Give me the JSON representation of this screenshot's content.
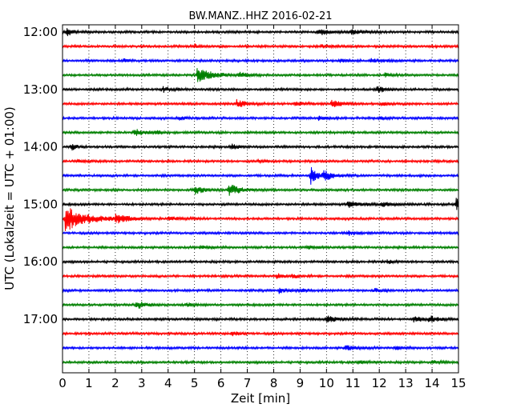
{
  "chart_data": {
    "type": "line",
    "subtype": "dayplot-seismogram",
    "title": "BW.MANZ..HHZ 2016-02-21",
    "xlabel": "Zeit  [min]",
    "ylabel": "UTC (Lokalzeit = UTC + 01:00)",
    "xlim": [
      0,
      15
    ],
    "x_ticks": [
      "0",
      "1",
      "2",
      "3",
      "4",
      "5",
      "6",
      "7",
      "8",
      "9",
      "10",
      "11",
      "12",
      "13",
      "14",
      "15"
    ],
    "y_tick_labels": [
      "12:00",
      "13:00",
      "14:00",
      "15:00",
      "16:00",
      "17:00"
    ],
    "grid": "vertical-dotted",
    "color_cycle": [
      "#000000",
      "#ff0000",
      "#0000ff",
      "#008000"
    ],
    "traces": [
      {
        "start": "12:00",
        "events": [
          {
            "t": 0.15,
            "amp": 5,
            "dur": 0.4
          },
          {
            "t": 9.7,
            "amp": 4,
            "dur": 0.6
          },
          {
            "t": 10.9,
            "amp": 3,
            "dur": 0.8
          }
        ]
      },
      {
        "start": "12:15",
        "events": [
          {
            "t": 5.0,
            "amp": 3,
            "dur": 0.3
          },
          {
            "t": 9.8,
            "amp": 2,
            "dur": 0.5
          }
        ]
      },
      {
        "start": "12:30",
        "events": [
          {
            "t": 2.3,
            "amp": 2,
            "dur": 0.4
          },
          {
            "t": 10.5,
            "amp": 2,
            "dur": 0.6
          },
          {
            "t": 11.7,
            "amp": 2,
            "dur": 0.8
          }
        ]
      },
      {
        "start": "12:45",
        "events": [
          {
            "t": 5.1,
            "amp": 9,
            "dur": 0.9
          },
          {
            "t": 6.7,
            "amp": 3,
            "dur": 0.5
          },
          {
            "t": 12.2,
            "amp": 2,
            "dur": 0.5
          }
        ]
      },
      {
        "start": "13:00",
        "events": [
          {
            "t": 3.8,
            "amp": 3,
            "dur": 0.6
          },
          {
            "t": 11.9,
            "amp": 4,
            "dur": 0.6
          }
        ]
      },
      {
        "start": "13:15",
        "events": [
          {
            "t": 6.6,
            "amp": 5,
            "dur": 0.5
          },
          {
            "t": 8.8,
            "amp": 3,
            "dur": 0.5
          },
          {
            "t": 10.2,
            "amp": 5,
            "dur": 0.5
          },
          {
            "t": 12.1,
            "amp": 2,
            "dur": 0.4
          }
        ]
      },
      {
        "start": "13:30",
        "events": [
          {
            "t": 4.4,
            "amp": 2,
            "dur": 0.5
          },
          {
            "t": 9.7,
            "amp": 2,
            "dur": 0.5
          },
          {
            "t": 12.0,
            "amp": 2,
            "dur": 0.5
          }
        ]
      },
      {
        "start": "13:45",
        "events": [
          {
            "t": 2.7,
            "amp": 5,
            "dur": 0.6
          },
          {
            "t": 3.5,
            "amp": 2,
            "dur": 0.4
          }
        ]
      },
      {
        "start": "14:00",
        "events": [
          {
            "t": 0.35,
            "amp": 4,
            "dur": 0.3
          },
          {
            "t": 6.4,
            "amp": 3,
            "dur": 0.5
          }
        ]
      },
      {
        "start": "14:15",
        "events": [
          {
            "t": 0.6,
            "amp": 1.5,
            "dur": 0.5
          },
          {
            "t": 7.4,
            "amp": 1.5,
            "dur": 0.5
          }
        ]
      },
      {
        "start": "14:30",
        "events": [
          {
            "t": 9.4,
            "amp": 11,
            "dur": 0.4
          },
          {
            "t": 9.9,
            "amp": 6,
            "dur": 0.6
          }
        ]
      },
      {
        "start": "14:45",
        "events": [
          {
            "t": 5.0,
            "amp": 5,
            "dur": 0.6
          },
          {
            "t": 6.3,
            "amp": 7,
            "dur": 0.8
          }
        ]
      },
      {
        "start": "15:00",
        "events": [
          {
            "t": 10.8,
            "amp": 4,
            "dur": 0.7
          },
          {
            "t": 12.1,
            "amp": 3,
            "dur": 0.6
          },
          {
            "t": 14.9,
            "amp": 9,
            "dur": 0.3
          }
        ]
      },
      {
        "start": "15:15",
        "events": [
          {
            "t": 0.1,
            "amp": 16,
            "dur": 1.3
          },
          {
            "t": 2.0,
            "amp": 5,
            "dur": 0.8
          },
          {
            "t": 4.0,
            "amp": 2,
            "dur": 0.8
          }
        ]
      },
      {
        "start": "15:30",
        "events": [
          {
            "t": 10.8,
            "amp": 3,
            "dur": 0.5
          }
        ]
      },
      {
        "start": "15:45",
        "events": [
          {
            "t": 5.2,
            "amp": 2,
            "dur": 0.6
          },
          {
            "t": 9.3,
            "amp": 2,
            "dur": 0.6
          }
        ]
      },
      {
        "start": "16:00",
        "events": [
          {
            "t": 12.3,
            "amp": 2,
            "dur": 0.4
          }
        ]
      },
      {
        "start": "16:15",
        "events": [
          {
            "t": 8.1,
            "amp": 3,
            "dur": 0.4
          },
          {
            "t": 8.7,
            "amp": 2,
            "dur": 0.5
          }
        ]
      },
      {
        "start": "16:30",
        "events": [
          {
            "t": 8.2,
            "amp": 3,
            "dur": 0.5
          },
          {
            "t": 9.1,
            "amp": 2,
            "dur": 0.5
          },
          {
            "t": 11.8,
            "amp": 2,
            "dur": 0.5
          }
        ]
      },
      {
        "start": "16:45",
        "events": [
          {
            "t": 2.8,
            "amp": 5,
            "dur": 0.6
          },
          {
            "t": 4.7,
            "amp": 2,
            "dur": 0.4
          }
        ]
      },
      {
        "start": "17:00",
        "events": [
          {
            "t": 10.0,
            "amp": 4,
            "dur": 0.7
          },
          {
            "t": 13.3,
            "amp": 3,
            "dur": 0.8
          },
          {
            "t": 13.9,
            "amp": 4,
            "dur": 0.5
          }
        ]
      },
      {
        "start": "17:15",
        "events": [
          {
            "t": 6.4,
            "amp": 3,
            "dur": 0.4
          }
        ]
      },
      {
        "start": "17:30",
        "events": [
          {
            "t": 10.7,
            "amp": 3,
            "dur": 0.7
          },
          {
            "t": 12.6,
            "amp": 2,
            "dur": 0.5
          }
        ]
      },
      {
        "start": "17:45",
        "events": [
          {
            "t": 11.2,
            "amp": 2,
            "dur": 0.5
          },
          {
            "t": 14.0,
            "amp": 2,
            "dur": 0.5
          }
        ]
      }
    ]
  }
}
